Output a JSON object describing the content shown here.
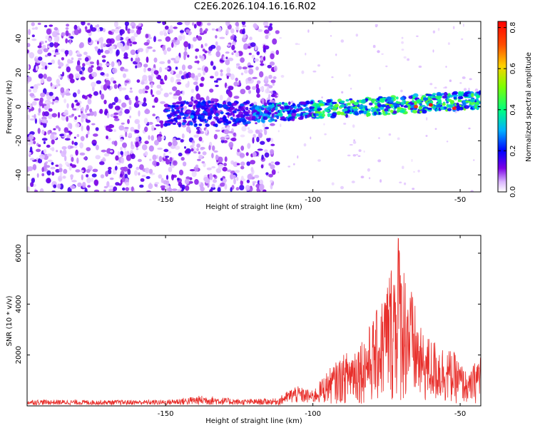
{
  "title": "C2E6.2026.104.16.16.R02",
  "chart_data": [
    {
      "type": "heatmap",
      "xlabel": "Height of straight line (km)",
      "ylabel": "Frequency (Hz)",
      "xlim": [
        -197,
        -43
      ],
      "ylim": [
        -50,
        50
      ],
      "xticks": [
        -150,
        -100,
        -50
      ],
      "yticks": [
        -40,
        -20,
        0,
        20,
        40
      ],
      "colorbar": {
        "label": "Normalized spectral amplitude",
        "range": [
          0,
          0.83
        ],
        "ticks": [
          0,
          0.2,
          0.4,
          0.6,
          0.8
        ],
        "tick_labels": [
          "0.0",
          "0.2",
          "0.4",
          "0.6",
          "0.8"
        ]
      },
      "description_points": [
        {
          "x": -141,
          "y": -6,
          "v": 0.3
        },
        {
          "x": -119,
          "y": -1,
          "v": 0.3
        },
        {
          "x": -90,
          "y": -4,
          "v": 0.5
        },
        {
          "x": -65,
          "y": 0,
          "v": 0.75
        },
        {
          "x": -60,
          "y": 1,
          "v": 0.8
        },
        {
          "x": -52,
          "y": -1,
          "v": 0.8
        },
        {
          "x": -44,
          "y": 6,
          "v": 0.4
        }
      ]
    },
    {
      "type": "line",
      "xlabel": "Height of straight line (km)",
      "ylabel": "SNR (10 * v/v)",
      "xlim": [
        -197,
        -43
      ],
      "ylim": [
        0,
        6700
      ],
      "xticks": [
        -150,
        -100,
        -50
      ],
      "yticks": [
        2000,
        4000,
        6000
      ],
      "color": "#e8302c",
      "envelope": [
        {
          "x": -197,
          "y": 250
        },
        {
          "x": -170,
          "y": 230
        },
        {
          "x": -150,
          "y": 240
        },
        {
          "x": -137,
          "y": 420
        },
        {
          "x": -125,
          "y": 260
        },
        {
          "x": -112,
          "y": 300
        },
        {
          "x": -106,
          "y": 800
        },
        {
          "x": -100,
          "y": 600
        },
        {
          "x": -95,
          "y": 1400
        },
        {
          "x": -88,
          "y": 2200
        },
        {
          "x": -82,
          "y": 2900
        },
        {
          "x": -77,
          "y": 4100
        },
        {
          "x": -73,
          "y": 5900
        },
        {
          "x": -71,
          "y": 6600
        },
        {
          "x": -68,
          "y": 5300
        },
        {
          "x": -63,
          "y": 2900
        },
        {
          "x": -57,
          "y": 2500
        },
        {
          "x": -52,
          "y": 2100
        },
        {
          "x": -47,
          "y": 1200
        },
        {
          "x": -43,
          "y": 2300
        }
      ]
    }
  ]
}
